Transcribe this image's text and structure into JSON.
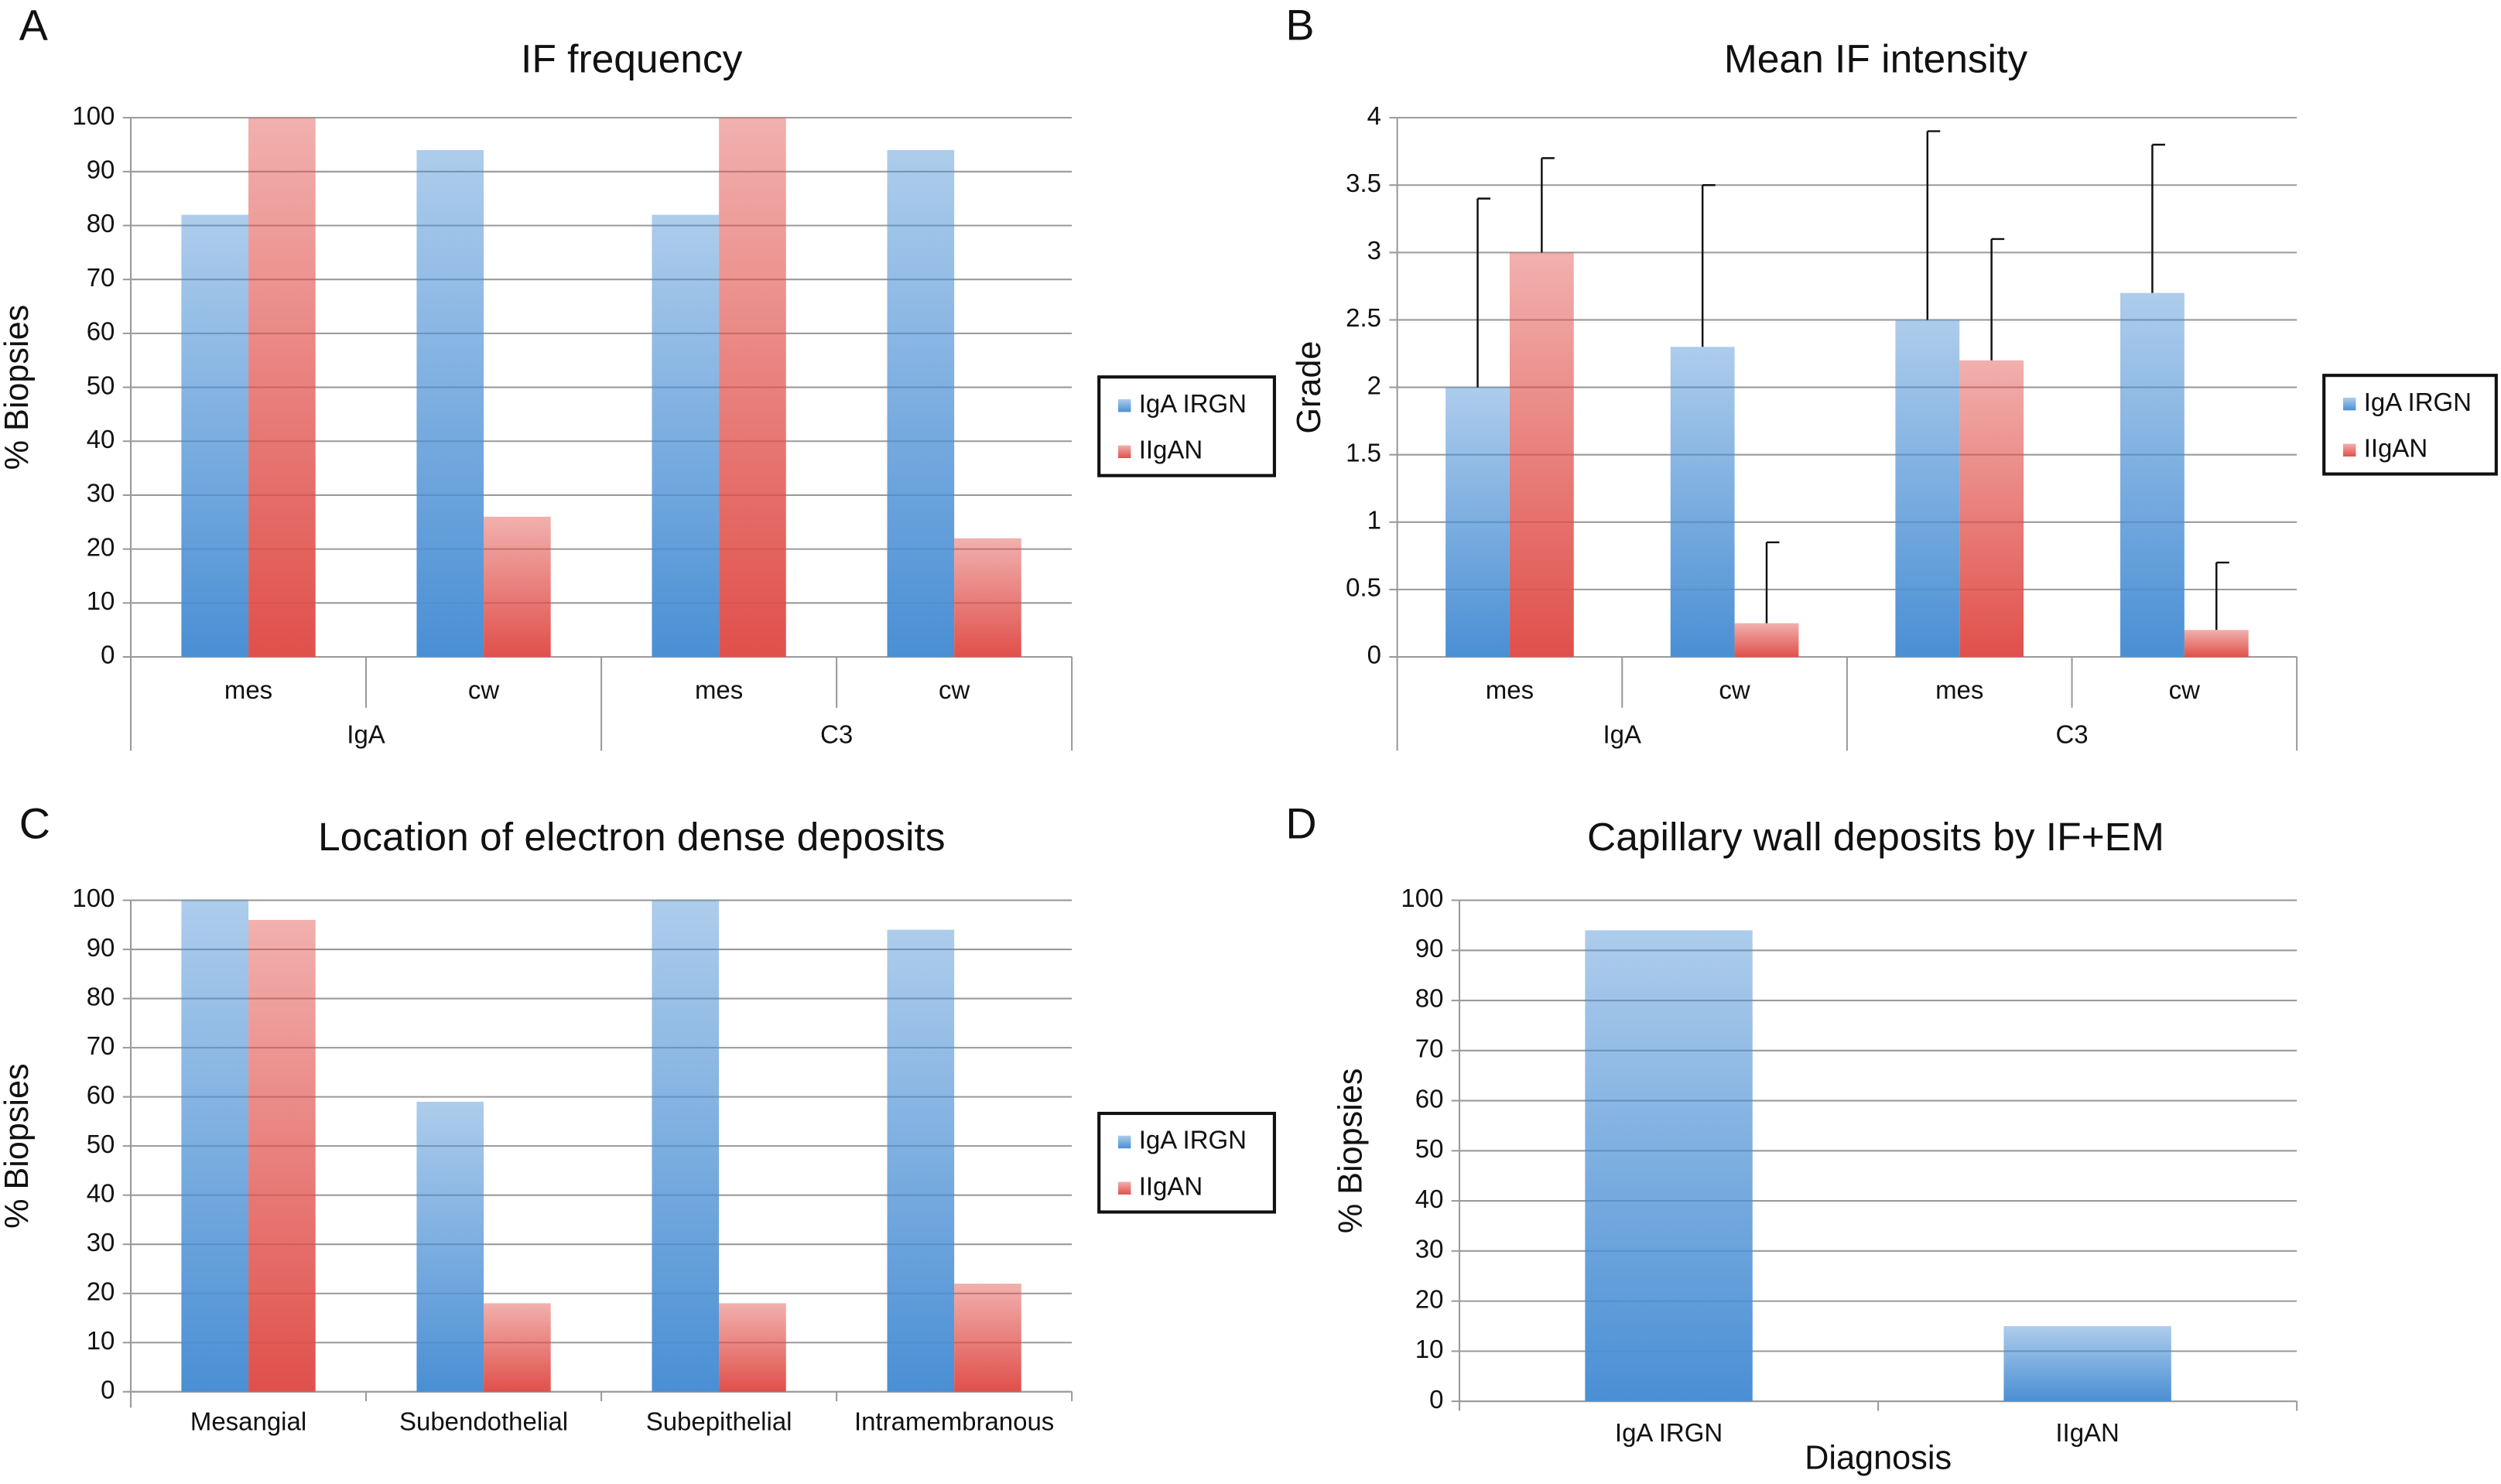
{
  "chart_data": [
    {
      "type": "bar",
      "panel": "A",
      "title": "IF frequency",
      "ylabel": "% Biopsies",
      "categories": [
        "mes",
        "cw",
        "mes",
        "cw"
      ],
      "groups": [
        "IgA",
        "C3"
      ],
      "series": [
        {
          "name": "IgA IRGN",
          "color": "#4a8fd4",
          "values": [
            82,
            94,
            82,
            94
          ]
        },
        {
          "name": "IIgAN",
          "color": "#e0504b",
          "values": [
            100,
            26,
            100,
            22
          ]
        }
      ],
      "ylim": [
        0,
        100
      ],
      "yticks": [
        0,
        10,
        20,
        30,
        40,
        50,
        60,
        70,
        80,
        90,
        100
      ],
      "grid": true,
      "legend": "right"
    },
    {
      "type": "bar",
      "panel": "B",
      "title": "Mean IF intensity",
      "ylabel": "Grade",
      "categories": [
        "mes",
        "cw",
        "mes",
        "cw"
      ],
      "groups": [
        "IgA",
        "C3"
      ],
      "series": [
        {
          "name": "IgA IRGN",
          "color": "#4a8fd4",
          "values": [
            2.0,
            2.3,
            2.5,
            2.7
          ],
          "errors": [
            1.4,
            1.2,
            1.4,
            1.1
          ]
        },
        {
          "name": "IIgAN",
          "color": "#e0504b",
          "values": [
            3.0,
            0.25,
            2.2,
            0.2
          ],
          "errors": [
            0.7,
            0.6,
            0.9,
            0.5
          ]
        }
      ],
      "ylim": [
        0,
        4
      ],
      "yticks": [
        0,
        0.5,
        1,
        1.5,
        2,
        2.5,
        3,
        3.5,
        4
      ],
      "grid": true,
      "legend": "right"
    },
    {
      "type": "bar",
      "panel": "C",
      "title": "Location of electron dense deposits",
      "ylabel": "% Biopsies",
      "categories": [
        "Mesangial",
        "Subendothelial",
        "Subepithelial",
        "Intramembranous"
      ],
      "series": [
        {
          "name": "IgA IRGN",
          "color": "#4a8fd4",
          "values": [
            100,
            59,
            100,
            94
          ]
        },
        {
          "name": "IIgAN",
          "color": "#e0504b",
          "values": [
            96,
            18,
            18,
            22
          ]
        }
      ],
      "ylim": [
        0,
        100
      ],
      "yticks": [
        0,
        10,
        20,
        30,
        40,
        50,
        60,
        70,
        80,
        90,
        100
      ],
      "grid": true,
      "legend": "right"
    },
    {
      "type": "bar",
      "panel": "D",
      "title": "Capillary wall deposits by IF+EM",
      "ylabel": "% Biopsies",
      "xlabel": "Diagnosis",
      "categories": [
        "IgA IRGN",
        "IIgAN"
      ],
      "series": [
        {
          "color": "#4a8fd4",
          "values": [
            94,
            15
          ]
        }
      ],
      "ylim": [
        0,
        100
      ],
      "yticks": [
        0,
        10,
        20,
        30,
        40,
        50,
        60,
        70,
        80,
        90,
        100
      ],
      "grid": true
    }
  ]
}
